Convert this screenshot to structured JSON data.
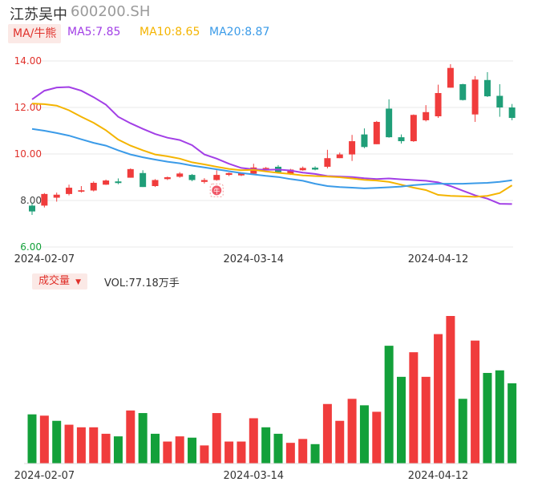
{
  "header": {
    "name": "江苏吴中",
    "code": "600200.SH"
  },
  "ma_legend": {
    "tag": "MA/牛熊",
    "items": [
      {
        "label": "MA5:7.85",
        "color": "#a23fe6"
      },
      {
        "label": "MA10:8.65",
        "color": "#f4b400"
      },
      {
        "label": "MA20:8.87",
        "color": "#3b9be8"
      }
    ]
  },
  "volume_legend": {
    "tag": "成交量",
    "text": "VOL:77.18万手"
  },
  "colors": {
    "up": "#f03c3c",
    "down": "#1f9e78",
    "vol_down": "#13a03a",
    "grid": "#e9e9e9"
  },
  "chart_data": [
    {
      "type": "candlestick",
      "ylim": [
        6.0,
        14.0
      ],
      "yticks": [
        "14.00",
        "12.00",
        "10.00",
        "8.00",
        "6.00"
      ],
      "ytick_colors": [
        "#e0312b",
        "#e0312b",
        "#e0312b",
        "#444444",
        "#13a03a"
      ],
      "xtick_labels": [
        "2024-02-07",
        "2024-03-14",
        "2024-04-12"
      ],
      "xtick_index": [
        1,
        18,
        33
      ],
      "annotation": {
        "index": 15,
        "label": "牛"
      },
      "candles": [
        {
          "o": 7.78,
          "c": 7.53,
          "h": 7.9,
          "l": 7.38
        },
        {
          "o": 7.78,
          "c": 8.28,
          "h": 8.32,
          "l": 7.7
        },
        {
          "o": 8.12,
          "c": 8.25,
          "h": 8.34,
          "l": 7.95
        },
        {
          "o": 8.28,
          "c": 8.55,
          "h": 8.68,
          "l": 8.22
        },
        {
          "o": 8.38,
          "c": 8.44,
          "h": 8.62,
          "l": 8.34
        },
        {
          "o": 8.43,
          "c": 8.76,
          "h": 8.82,
          "l": 8.39
        },
        {
          "o": 8.68,
          "c": 8.86,
          "h": 8.9,
          "l": 8.67
        },
        {
          "o": 8.82,
          "c": 8.75,
          "h": 8.95,
          "l": 8.7
        },
        {
          "o": 8.98,
          "c": 9.35,
          "h": 9.38,
          "l": 8.98
        },
        {
          "o": 9.18,
          "c": 8.58,
          "h": 9.3,
          "l": 8.58
        },
        {
          "o": 8.62,
          "c": 8.88,
          "h": 8.92,
          "l": 8.58
        },
        {
          "o": 8.92,
          "c": 9.0,
          "h": 9.03,
          "l": 8.88
        },
        {
          "o": 9.02,
          "c": 9.16,
          "h": 9.22,
          "l": 8.98
        },
        {
          "o": 9.1,
          "c": 8.88,
          "h": 9.14,
          "l": 8.83
        },
        {
          "o": 8.8,
          "c": 8.88,
          "h": 8.96,
          "l": 8.73
        },
        {
          "o": 8.88,
          "c": 9.1,
          "h": 9.3,
          "l": 8.85
        },
        {
          "o": 9.1,
          "c": 9.18,
          "h": 9.2,
          "l": 9.05
        },
        {
          "o": 9.08,
          "c": 9.18,
          "h": 9.2,
          "l": 9.05
        },
        {
          "o": 9.15,
          "c": 9.42,
          "h": 9.58,
          "l": 9.12
        },
        {
          "o": 9.38,
          "c": 9.4,
          "h": 9.44,
          "l": 9.32
        },
        {
          "o": 9.45,
          "c": 9.22,
          "h": 9.52,
          "l": 9.22
        },
        {
          "o": 9.15,
          "c": 9.33,
          "h": 9.36,
          "l": 9.1
        },
        {
          "o": 9.3,
          "c": 9.4,
          "h": 9.46,
          "l": 9.28
        },
        {
          "o": 9.41,
          "c": 9.33,
          "h": 9.47,
          "l": 9.3
        },
        {
          "o": 9.45,
          "c": 9.82,
          "h": 10.18,
          "l": 9.38
        },
        {
          "o": 9.82,
          "c": 9.98,
          "h": 10.06,
          "l": 9.82
        },
        {
          "o": 9.98,
          "c": 10.55,
          "h": 10.82,
          "l": 9.7
        },
        {
          "o": 10.84,
          "c": 10.3,
          "h": 11.1,
          "l": 10.25
        },
        {
          "o": 10.42,
          "c": 11.38,
          "h": 11.42,
          "l": 10.42
        },
        {
          "o": 11.95,
          "c": 10.72,
          "h": 12.35,
          "l": 10.7
        },
        {
          "o": 10.72,
          "c": 10.55,
          "h": 10.84,
          "l": 10.45
        },
        {
          "o": 10.55,
          "c": 11.68,
          "h": 11.7,
          "l": 10.52
        },
        {
          "o": 11.45,
          "c": 11.8,
          "h": 12.1,
          "l": 11.4
        },
        {
          "o": 11.62,
          "c": 12.62,
          "h": 12.98,
          "l": 11.55
        },
        {
          "o": 12.85,
          "c": 13.7,
          "h": 13.86,
          "l": 12.85
        },
        {
          "o": 13.0,
          "c": 12.32,
          "h": 13.02,
          "l": 12.3
        },
        {
          "o": 11.7,
          "c": 13.2,
          "h": 13.35,
          "l": 11.38
        },
        {
          "o": 13.18,
          "c": 12.48,
          "h": 13.52,
          "l": 12.45
        },
        {
          "o": 12.5,
          "c": 12.0,
          "h": 13.0,
          "l": 11.6
        },
        {
          "o": 12.0,
          "c": 11.55,
          "h": 12.15,
          "l": 11.45
        }
      ],
      "series": [
        {
          "name": "MA5",
          "color": "#a23fe6",
          "values": [
            12.35,
            12.72,
            12.86,
            12.88,
            12.72,
            12.44,
            12.12,
            11.6,
            11.32,
            11.08,
            10.86,
            10.7,
            10.6,
            10.38,
            9.98,
            9.8,
            9.58,
            9.4,
            9.34,
            9.32,
            9.33,
            9.29,
            9.2,
            9.14,
            9.05,
            9.03,
            9.01,
            8.96,
            8.92,
            8.95,
            8.91,
            8.88,
            8.85,
            8.78,
            8.62,
            8.42,
            8.22,
            8.08,
            7.86,
            7.85
          ]
        },
        {
          "name": "MA10",
          "color": "#f4b400",
          "values": [
            12.17,
            12.14,
            12.08,
            11.88,
            11.6,
            11.34,
            11.02,
            10.62,
            10.36,
            10.16,
            9.98,
            9.9,
            9.8,
            9.64,
            9.55,
            9.45,
            9.36,
            9.3,
            9.32,
            9.25,
            9.19,
            9.14,
            9.08,
            9.05,
            9.03,
            9.0,
            8.95,
            8.89,
            8.86,
            8.8,
            8.68,
            8.55,
            8.45,
            8.24,
            8.2,
            8.18,
            8.16,
            8.2,
            8.32,
            8.65
          ]
        },
        {
          "name": "MA20",
          "color": "#3b9be8",
          "values": [
            11.08,
            11.0,
            10.9,
            10.79,
            10.63,
            10.48,
            10.36,
            10.16,
            9.98,
            9.86,
            9.76,
            9.67,
            9.6,
            9.5,
            9.42,
            9.34,
            9.26,
            9.18,
            9.12,
            9.06,
            9.01,
            8.92,
            8.85,
            8.72,
            8.62,
            8.58,
            8.55,
            8.52,
            8.54,
            8.57,
            8.6,
            8.66,
            8.7,
            8.72,
            8.72,
            8.72,
            8.74,
            8.76,
            8.8,
            8.87
          ]
        }
      ]
    },
    {
      "type": "bar",
      "title": "成交量",
      "xtick_labels": [
        "2024-02-07",
        "2024-03-14",
        "2024-04-12"
      ],
      "values": [
        {
          "v": 38,
          "dir": "down"
        },
        {
          "v": 37,
          "dir": "up"
        },
        {
          "v": 33,
          "dir": "down"
        },
        {
          "v": 30,
          "dir": "up"
        },
        {
          "v": 28,
          "dir": "up"
        },
        {
          "v": 28,
          "dir": "up"
        },
        {
          "v": 23,
          "dir": "up"
        },
        {
          "v": 21,
          "dir": "down"
        },
        {
          "v": 41,
          "dir": "up"
        },
        {
          "v": 39,
          "dir": "down"
        },
        {
          "v": 23,
          "dir": "down"
        },
        {
          "v": 17,
          "dir": "up"
        },
        {
          "v": 21,
          "dir": "up"
        },
        {
          "v": 20,
          "dir": "down"
        },
        {
          "v": 14,
          "dir": "up"
        },
        {
          "v": 39,
          "dir": "up"
        },
        {
          "v": 17,
          "dir": "up"
        },
        {
          "v": 17,
          "dir": "up"
        },
        {
          "v": 35,
          "dir": "up"
        },
        {
          "v": 28,
          "dir": "down"
        },
        {
          "v": 23,
          "dir": "down"
        },
        {
          "v": 16,
          "dir": "up"
        },
        {
          "v": 19,
          "dir": "up"
        },
        {
          "v": 15,
          "dir": "down"
        },
        {
          "v": 46,
          "dir": "up"
        },
        {
          "v": 33,
          "dir": "up"
        },
        {
          "v": 50,
          "dir": "up"
        },
        {
          "v": 45,
          "dir": "down"
        },
        {
          "v": 40,
          "dir": "up"
        },
        {
          "v": 91,
          "dir": "down"
        },
        {
          "v": 67,
          "dir": "down"
        },
        {
          "v": 86,
          "dir": "up"
        },
        {
          "v": 67,
          "dir": "up"
        },
        {
          "v": 100,
          "dir": "up"
        },
        {
          "v": 114,
          "dir": "up"
        },
        {
          "v": 50,
          "dir": "down"
        },
        {
          "v": 95,
          "dir": "up"
        },
        {
          "v": 70,
          "dir": "down"
        },
        {
          "v": 72,
          "dir": "down"
        },
        {
          "v": 62,
          "dir": "down"
        }
      ]
    }
  ]
}
